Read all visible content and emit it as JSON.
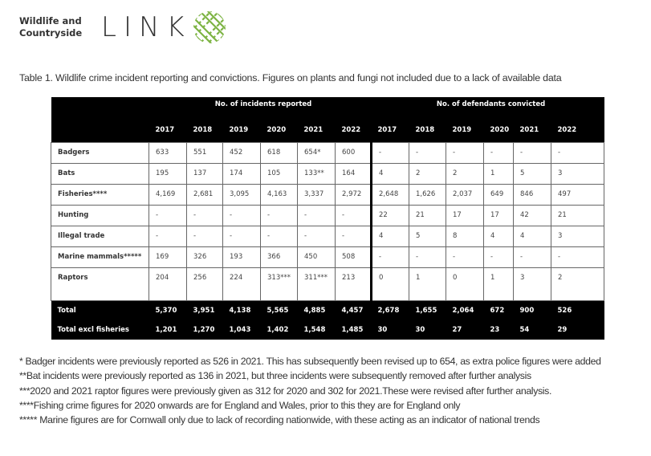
{
  "logo": {
    "org_line1": "Wildlife and",
    "org_line2": "Countryside",
    "wordmark": "LINK",
    "accent_color": "#7cb342"
  },
  "caption": "Table 1. Wildlife crime incident reporting and convictions. Figures on plants and fungi not included due to a lack of available data",
  "table": {
    "group_headers": [
      "No. of incidents reported",
      "No. of defendants convicted"
    ],
    "years": [
      "2017",
      "2018",
      "2019",
      "2020",
      "2021",
      "2022",
      "2017",
      "2018",
      "2019",
      "2020",
      "2021",
      "2022"
    ],
    "rows": [
      {
        "label": "Badgers",
        "values": [
          "633",
          "551",
          "452",
          "618",
          "654*",
          "600",
          "-",
          "-",
          "-",
          "-",
          "-",
          "-"
        ]
      },
      {
        "label": "Bats",
        "values": [
          "195",
          "137",
          "174",
          "105",
          "133**",
          "164",
          "4",
          "2",
          "2",
          "1",
          "5",
          "3"
        ]
      },
      {
        "label": "Fisheries****",
        "values": [
          "4,169",
          "2,681",
          "3,095",
          "4,163",
          "3,337",
          "2,972",
          "2,648",
          "1,626",
          "2,037",
          "649",
          "846",
          "497"
        ]
      },
      {
        "label": "Hunting",
        "values": [
          "-",
          "-",
          "-",
          "-",
          "-",
          "-",
          "22",
          "21",
          "17",
          "17",
          "42",
          "21"
        ]
      },
      {
        "label": "Illegal trade",
        "values": [
          "-",
          "-",
          "-",
          "-",
          "-",
          "-",
          "4",
          "5",
          "8",
          "4",
          "4",
          "3"
        ]
      },
      {
        "label": "Marine mammals*****",
        "values": [
          "169",
          "326",
          "193",
          "366",
          "450",
          "508",
          "-",
          "-",
          "-",
          "-",
          "-",
          "-"
        ]
      },
      {
        "label": "Raptors",
        "values": [
          "204",
          "256",
          "224",
          "313***",
          "311***",
          "213",
          "0",
          "1",
          "0",
          "1",
          "3",
          "2"
        ]
      }
    ],
    "totals": [
      {
        "label": "Total",
        "values": [
          "5,370",
          "3,951",
          "4,138",
          "5,565",
          "4,885",
          "4,457",
          "2,678",
          "1,655",
          "2,064",
          "672",
          "900",
          "526"
        ]
      },
      {
        "label": "Total excl fisheries",
        "values": [
          "1,201",
          "1,270",
          "1,043",
          "1,402",
          "1,548",
          "1,485",
          "30",
          "30",
          "27",
          "23",
          "54",
          "29"
        ]
      }
    ]
  },
  "footnotes": [
    "* Badger incidents were previously reported as 526 in 2021. This has subsequently been revised up to 654, as extra police figures were added",
    "**Bat incidents were previously reported as 136 in 2021, but three incidents were subsequently removed after further analysis",
    "***2020 and 2021 raptor figures were previously given as 312 for 2020 and 302 for 2021.These were revised after further analysis.",
    "****Fishing crime figures for 2020 onwards are for England and Wales, prior to this they are for England only",
    "***** Marine figures are for Cornwall only due to lack of recording nationwide, with these acting as an indicator of national trends"
  ]
}
